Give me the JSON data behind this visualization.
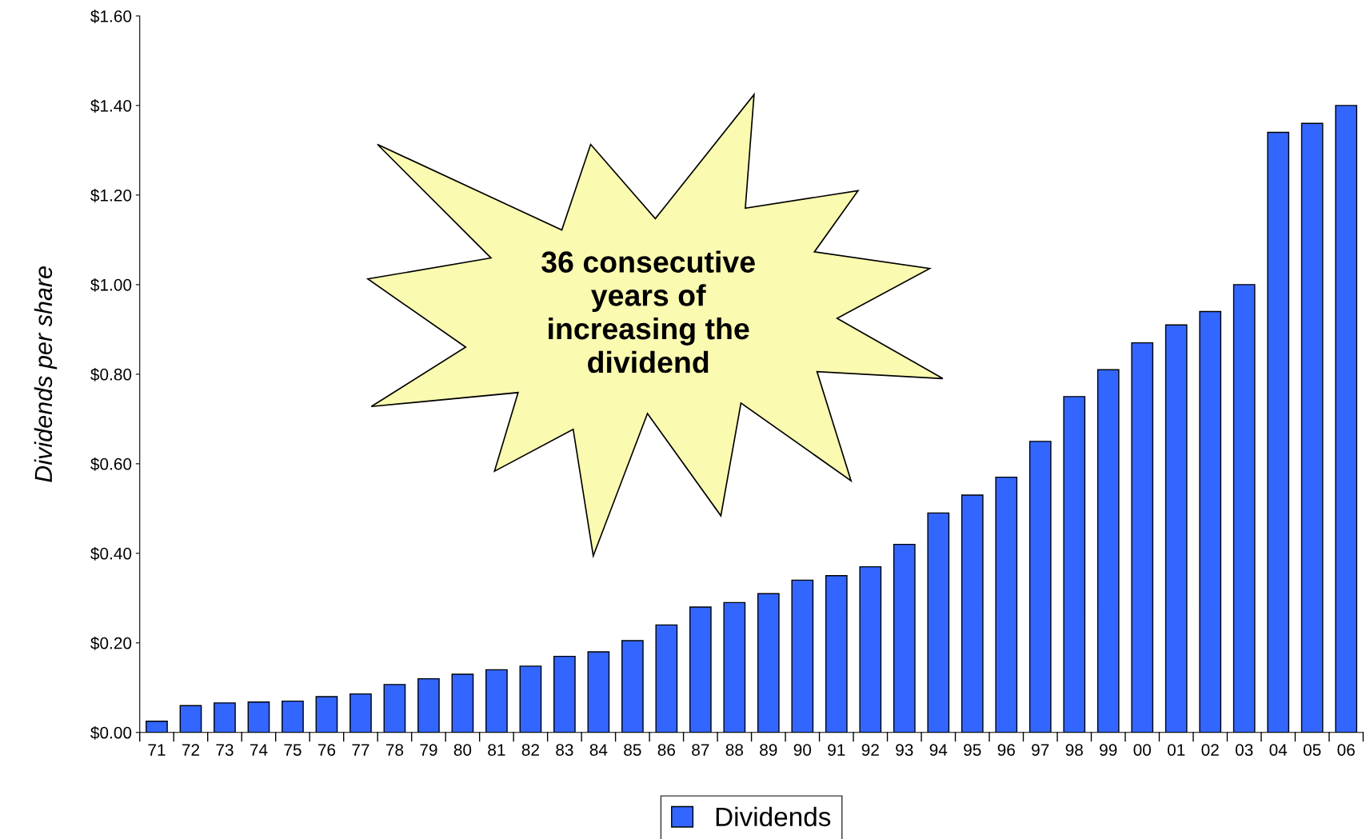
{
  "chart_data": {
    "type": "bar",
    "ylabel": "Dividends per share",
    "categories": [
      "71",
      "72",
      "73",
      "74",
      "75",
      "76",
      "77",
      "78",
      "79",
      "80",
      "81",
      "82",
      "83",
      "84",
      "85",
      "86",
      "87",
      "88",
      "89",
      "90",
      "91",
      "92",
      "93",
      "94",
      "95",
      "96",
      "97",
      "98",
      "99",
      "00",
      "01",
      "02",
      "03",
      "04",
      "05",
      "06"
    ],
    "series": [
      {
        "name": "Dividends",
        "color": "#3366ff",
        "values": [
          0.025,
          0.06,
          0.066,
          0.068,
          0.07,
          0.08,
          0.086,
          0.107,
          0.12,
          0.13,
          0.14,
          0.148,
          0.17,
          0.18,
          0.205,
          0.24,
          0.28,
          0.29,
          0.31,
          0.34,
          0.35,
          0.37,
          0.42,
          0.49,
          0.53,
          0.57,
          0.65,
          0.75,
          0.81,
          0.87,
          0.91,
          0.94,
          1.0,
          1.34,
          1.36,
          1.4
        ]
      }
    ],
    "ylim": [
      0,
      1.6
    ],
    "yticks": [
      {
        "value": 0,
        "label": "$0.00"
      },
      {
        "value": 0.2,
        "label": "$0.20"
      },
      {
        "value": 0.4,
        "label": "$0.40"
      },
      {
        "value": 0.6,
        "label": "$0.60"
      },
      {
        "value": 0.8,
        "label": "$0.80"
      },
      {
        "value": 1.0,
        "label": "$1.00"
      },
      {
        "value": 1.2,
        "label": "$1.20"
      },
      {
        "value": 1.4,
        "label": "$1.40"
      },
      {
        "value": 1.6,
        "label": "$1.60"
      }
    ],
    "annotations": [
      "36 consecutive\nyears of\nincreasing the\ndividend"
    ],
    "grid": false,
    "legend": "bottom"
  }
}
